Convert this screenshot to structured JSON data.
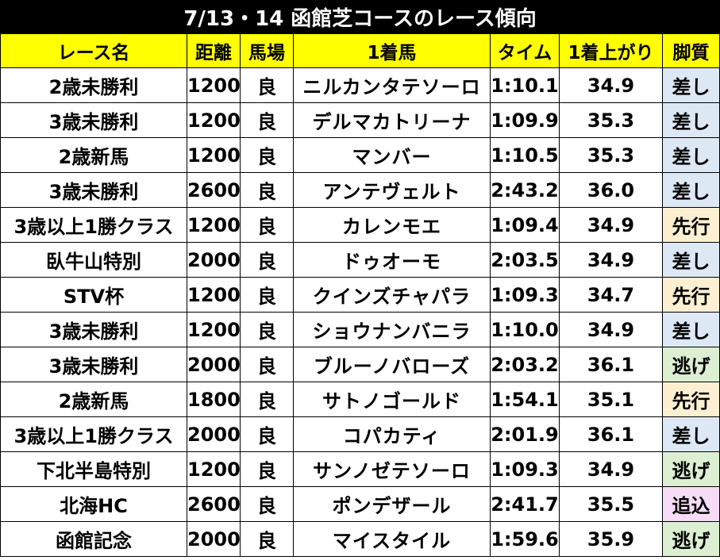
{
  "title": "7/13・14 函館芝コースのレース傾向",
  "columns": [
    "レース名",
    "距離",
    "馬場",
    "1着馬",
    "タイム",
    "1着上がり",
    "脚質"
  ],
  "style_colors": {
    "差し": "#dde8f5",
    "先行": "#fdf0d2",
    "逃げ": "#dcefd2",
    "追込": "#f6dcf5"
  },
  "rows": [
    {
      "race": "2歳未勝利",
      "distance": "1200",
      "track": "良",
      "winner": "ニルカンタテソーロ",
      "time": "1:10.1",
      "last3f": "34.9",
      "style": "差し"
    },
    {
      "race": "3歳未勝利",
      "distance": "1200",
      "track": "良",
      "winner": "デルマカトリーナ",
      "time": "1:09.9",
      "last3f": "35.3",
      "style": "差し"
    },
    {
      "race": "2歳新馬",
      "distance": "1200",
      "track": "良",
      "winner": "マンバー",
      "time": "1:10.5",
      "last3f": "35.3",
      "style": "差し"
    },
    {
      "race": "3歳未勝利",
      "distance": "2600",
      "track": "良",
      "winner": "アンテヴェルト",
      "time": "2:43.2",
      "last3f": "36.0",
      "style": "差し"
    },
    {
      "race": "3歳以上1勝クラス",
      "distance": "1200",
      "track": "良",
      "winner": "カレンモエ",
      "time": "1:09.4",
      "last3f": "34.9",
      "style": "先行"
    },
    {
      "race": "臥牛山特別",
      "distance": "2000",
      "track": "良",
      "winner": "ドゥオーモ",
      "time": "2:03.5",
      "last3f": "34.9",
      "style": "差し"
    },
    {
      "race": "STV杯",
      "distance": "1200",
      "track": "良",
      "winner": "クインズチャパラ",
      "time": "1:09.3",
      "last3f": "34.7",
      "style": "先行"
    },
    {
      "race": "3歳未勝利",
      "distance": "1200",
      "track": "良",
      "winner": "ショウナンバニラ",
      "time": "1:10.0",
      "last3f": "34.9",
      "style": "差し"
    },
    {
      "race": "3歳未勝利",
      "distance": "2000",
      "track": "良",
      "winner": "ブルーノバローズ",
      "time": "2:03.2",
      "last3f": "36.1",
      "style": "逃げ"
    },
    {
      "race": "2歳新馬",
      "distance": "1800",
      "track": "良",
      "winner": "サトノゴールド",
      "time": "1:54.1",
      "last3f": "35.1",
      "style": "先行"
    },
    {
      "race": "3歳以上1勝クラス",
      "distance": "2000",
      "track": "良",
      "winner": "コパカティ",
      "time": "2:01.9",
      "last3f": "36.1",
      "style": "差し"
    },
    {
      "race": "下北半島特別",
      "distance": "1200",
      "track": "良",
      "winner": "サンノゼテソーロ",
      "time": "1:09.3",
      "last3f": "34.9",
      "style": "逃げ"
    },
    {
      "race": "北海HC",
      "distance": "2600",
      "track": "良",
      "winner": "ポンデザール",
      "time": "2:41.7",
      "last3f": "35.5",
      "style": "追込"
    },
    {
      "race": "函館記念",
      "distance": "2000",
      "track": "良",
      "winner": "マイスタイル",
      "time": "1:59.6",
      "last3f": "35.9",
      "style": "逃げ"
    }
  ]
}
